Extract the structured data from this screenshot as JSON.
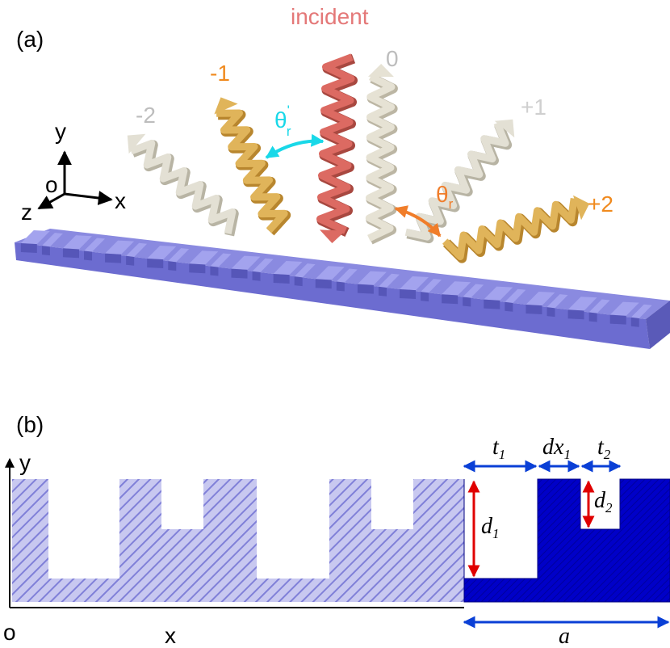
{
  "panel_a": {
    "label": "(a)",
    "incident": "incident",
    "orders": [
      "-2",
      "-1",
      "0",
      "+1",
      "+2"
    ],
    "theta_r_prime": {
      "symbol": "θ",
      "sub": "r",
      "sup": "'"
    },
    "theta_r": {
      "symbol": "θ",
      "sub": "r"
    },
    "axes": {
      "y": "y",
      "o": "o",
      "z": "z",
      "x": "x"
    }
  },
  "panel_b": {
    "label": "(b)",
    "axes": {
      "y": "y",
      "o": "o",
      "x": "x"
    },
    "dimensions": {
      "t1": {
        "symbol": "t",
        "sub": "1"
      },
      "dx1": {
        "symbol": "dx",
        "sub": "1"
      },
      "t2": {
        "symbol": "t",
        "sub": "2"
      },
      "d1": {
        "symbol": "d",
        "sub": "1"
      },
      "d2": {
        "symbol": "d",
        "sub": "2"
      },
      "a": "a"
    }
  }
}
